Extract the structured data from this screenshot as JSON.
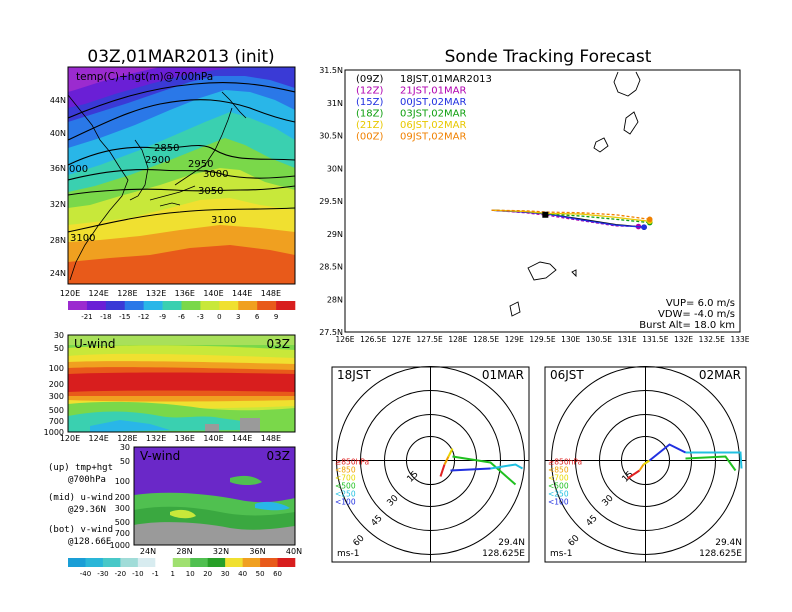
{
  "titles": {
    "left": "03Z,01MAR2013 (init)",
    "right": "Sonde Tracking Forecast"
  },
  "upper_map": {
    "field_label": "temp(C)+hgt(m)@700hPa",
    "lat_ticks": [
      "44N",
      "40N",
      "36N",
      "32N",
      "28N",
      "24N"
    ],
    "lon_ticks": [
      "120E",
      "124E",
      "128E",
      "132E",
      "136E",
      "140E",
      "144E",
      "148E"
    ],
    "contour_labels": [
      "2850",
      "2900",
      "2950",
      "3000",
      "3050",
      "3100",
      "3100",
      "000",
      "2850"
    ],
    "colorbar": [
      "-21",
      "-18",
      "-15",
      "-12",
      "-9",
      "-6",
      "-3",
      "0",
      "3",
      "6",
      "9"
    ],
    "colorbar_colors": [
      "#9b2bcf",
      "#6a1fd6",
      "#3a3ad6",
      "#2a78e8",
      "#29b6e8",
      "#3ad0b0",
      "#7ad84a",
      "#c8e83a",
      "#f0e030",
      "#f0a020",
      "#e85a1a",
      "#d81e1e"
    ]
  },
  "u_wind": {
    "label": "U-wind",
    "time": "03Z",
    "y_ticks": [
      "30",
      "50",
      "100",
      "200",
      "300",
      "500",
      "700",
      "1000"
    ],
    "x_ticks": [
      "120E",
      "124E",
      "128E",
      "132E",
      "136E",
      "140E",
      "144E",
      "148E"
    ]
  },
  "v_wind": {
    "label": "V-wind",
    "time": "03Z",
    "y_ticks": [
      "30",
      "50",
      "100",
      "200",
      "300",
      "500",
      "700",
      "1000"
    ],
    "x_ticks": [
      "24N",
      "28N",
      "32N",
      "36N",
      "40N"
    ],
    "colorbar": [
      "-40",
      "-30",
      "-20",
      "-10",
      "-1",
      "1",
      "10",
      "20",
      "30",
      "40",
      "50",
      "60"
    ],
    "colorbar_colors": [
      "#1a9ed6",
      "#2ab6d8",
      "#48c8c8",
      "#a0dcd8",
      "#d8ecf0",
      "#ffffff",
      "#a0e070",
      "#50c050",
      "#28a028",
      "#f0e030",
      "#f0a020",
      "#e85a1a",
      "#d81e1e"
    ]
  },
  "legend_text": {
    "up": "(up) tmp+hgt",
    "up2": "@700hPa",
    "mid": "(mid) u-wind",
    "mid2": "@29.36N",
    "bot": "(bot) v-wind",
    "bot2": "@128.66E"
  },
  "track_map": {
    "lat_ticks": [
      "31.5N",
      "31N",
      "30.5N",
      "30N",
      "29.5N",
      "29N",
      "28.5N",
      "28N",
      "27.5N"
    ],
    "lon_ticks": [
      "126E",
      "126.5E",
      "127E",
      "127.5E",
      "128E",
      "128.5E",
      "129E",
      "129.5E",
      "130E",
      "130.5E",
      "131E",
      "131.5E",
      "132E",
      "132.5E",
      "133E"
    ],
    "launches": [
      {
        "code": "(09Z)",
        "text": "18JST,01MAR2013",
        "color": "#000000"
      },
      {
        "code": "(12Z)",
        "text": "21JST,01MAR",
        "color": "#b000b0"
      },
      {
        "code": "(15Z)",
        "text": "00JST,02MAR",
        "color": "#2030e0"
      },
      {
        "code": "(18Z)",
        "text": "03JST,02MAR",
        "color": "#10a010"
      },
      {
        "code": "(21Z)",
        "text": "06JST,02MAR",
        "color": "#e8c800"
      },
      {
        "code": "(00Z)",
        "text": "09JST,02MAR",
        "color": "#f08000"
      }
    ],
    "params": {
      "vup": "VUP= 6.0 m/s",
      "vdw": "VDW= -4.0 m/s",
      "burst": "Burst Alt= 18.0 km"
    }
  },
  "hodo_left": {
    "time": "18JST",
    "date": "01MAR",
    "rings": [
      "15",
      "30",
      "45",
      "60"
    ],
    "levels": [
      {
        "label": "≥850hPa",
        "color": "#e02020"
      },
      {
        "label": "<850",
        "color": "#f0a000"
      },
      {
        "label": "<700",
        "color": "#e8d800"
      },
      {
        "label": "<500",
        "color": "#20c020"
      },
      {
        "label": "<250",
        "color": "#20c0e0"
      },
      {
        "label": "<100",
        "color": "#2030e0"
      }
    ],
    "unit": "ms-1",
    "lat": "29.4N",
    "lon": "128.625E"
  },
  "hodo_right": {
    "time": "06JST",
    "date": "02MAR",
    "rings": [
      "15",
      "30",
      "45",
      "60"
    ],
    "levels": [
      {
        "label": "≥850hPa",
        "color": "#e02020"
      },
      {
        "label": "<850",
        "color": "#f0a000"
      },
      {
        "label": "<700",
        "color": "#e8d800"
      },
      {
        "label": "<500",
        "color": "#20c020"
      },
      {
        "label": "<250",
        "color": "#20c0e0"
      },
      {
        "label": "<100",
        "color": "#2030e0"
      }
    ],
    "unit": "ms-1",
    "lat": "29.4N",
    "lon": "128.625E"
  },
  "chart_data": [
    {
      "type": "heatmap",
      "title": "03Z,01MAR2013 (init)",
      "field": "temp(C)+hgt(m)@700hPa",
      "xlim": [
        "120E",
        "150E"
      ],
      "ylim": [
        "22N",
        "47N"
      ],
      "contours_m": [
        2850,
        2900,
        2950,
        3000,
        3050,
        3100
      ],
      "colorbar_C": [
        -21,
        -18,
        -15,
        -12,
        -9,
        -6,
        -3,
        0,
        3,
        6,
        9
      ]
    },
    {
      "type": "heatmap",
      "title": "U-wind",
      "y_hPa": [
        30,
        50,
        100,
        200,
        300,
        500,
        700,
        1000
      ],
      "xlim": [
        "120E",
        "150E"
      ]
    },
    {
      "type": "heatmap",
      "title": "V-wind",
      "y_hPa": [
        30,
        50,
        100,
        200,
        300,
        500,
        700,
        1000
      ],
      "xlim": [
        "24N",
        "40N"
      ],
      "colorbar": [
        -40,
        -30,
        -20,
        -10,
        -1,
        1,
        10,
        20,
        30,
        40,
        50,
        60
      ]
    },
    {
      "type": "line",
      "title": "Sonde Tracking Forecast",
      "xlim": [
        126,
        133
      ],
      "ylim": [
        27.5,
        31.5
      ],
      "series": [
        {
          "name": "(09Z) 18JST,01MAR2013",
          "x": [
            128.6,
            129.2,
            129.6,
            130.2,
            130.8,
            131.3
          ],
          "y": [
            29.36,
            29.33,
            29.3,
            29.22,
            29.14,
            29.1
          ]
        },
        {
          "name": "(12Z) 21JST,01MAR",
          "x": [
            128.6,
            129.2,
            129.6,
            130.2,
            130.8,
            131.2
          ],
          "y": [
            29.36,
            29.32,
            29.28,
            29.2,
            29.12,
            29.11
          ]
        },
        {
          "name": "(15Z) 00JST,02MAR",
          "x": [
            128.6,
            129.2,
            129.6,
            130.2,
            130.8,
            131.3
          ],
          "y": [
            29.36,
            29.33,
            29.3,
            29.21,
            29.13,
            29.1
          ]
        },
        {
          "name": "(18Z) 03JST,02MAR",
          "x": [
            128.6,
            129.2,
            129.6,
            130.2,
            130.8,
            131.4
          ],
          "y": [
            29.36,
            29.34,
            29.3,
            29.27,
            29.22,
            29.17
          ]
        },
        {
          "name": "(21Z) 06JST,02MAR",
          "x": [
            128.6,
            129.2,
            129.6,
            130.2,
            130.8,
            131.4
          ],
          "y": [
            29.36,
            29.34,
            29.31,
            29.3,
            29.25,
            29.19
          ]
        },
        {
          "name": "(00Z) 09JST,02MAR",
          "x": [
            128.6,
            129.2,
            129.6,
            130.2,
            130.8,
            131.4
          ],
          "y": [
            29.36,
            29.35,
            29.33,
            29.32,
            29.29,
            29.22
          ]
        }
      ]
    }
  ]
}
